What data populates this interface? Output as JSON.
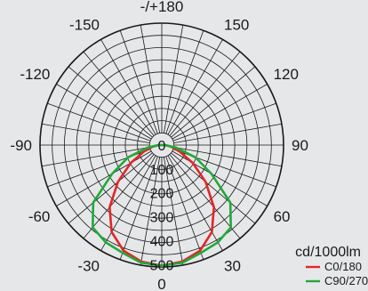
{
  "chart_data": {
    "type": "polar",
    "title": "",
    "unit": "cd/1000lm",
    "radial_ticks": [
      "0",
      "100",
      "200",
      "300",
      "400",
      "500"
    ],
    "radial_range": [
      0,
      500
    ],
    "angle_labels": [
      {
        "deg": 180,
        "text": "-/+180"
      },
      {
        "deg": -150,
        "text": "-150"
      },
      {
        "deg": 150,
        "text": "150"
      },
      {
        "deg": -120,
        "text": "-120"
      },
      {
        "deg": 120,
        "text": "120"
      },
      {
        "deg": -90,
        "text": "-90"
      },
      {
        "deg": 90,
        "text": "90"
      },
      {
        "deg": -60,
        "text": "-60"
      },
      {
        "deg": 60,
        "text": "60"
      },
      {
        "deg": -30,
        "text": "-30"
      },
      {
        "deg": 30,
        "text": "30"
      },
      {
        "deg": 0,
        "text": "0"
      }
    ],
    "grid": true,
    "legend_position": "bottom-right",
    "series": [
      {
        "name": "C0/180",
        "color": "#e32626",
        "angles": [
          0,
          10,
          20,
          30,
          40,
          50,
          60,
          70,
          80,
          90,
          100,
          180
        ],
        "values": [
          505,
          495,
          470,
          420,
          340,
          240,
          150,
          80,
          40,
          12,
          0,
          0
        ]
      },
      {
        "name": "C90/270",
        "color": "#1faa3a",
        "angles": [
          0,
          10,
          20,
          30,
          40,
          50,
          60,
          70,
          80,
          90,
          100,
          180
        ],
        "values": [
          505,
          500,
          480,
          470,
          450,
          375,
          240,
          150,
          60,
          15,
          0,
          0
        ]
      }
    ]
  }
}
